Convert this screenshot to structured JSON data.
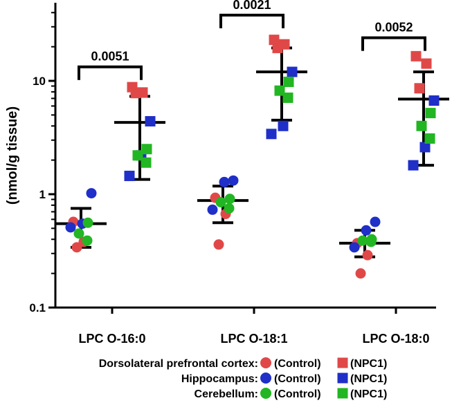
{
  "chart_data": {
    "type": "scatter",
    "title": "",
    "xlabel": "",
    "ylabel": "(nmol/g tissue)",
    "yscale": "log",
    "ylim": [
      0.1,
      60
    ],
    "y_ticks": [
      {
        "value": 0.1,
        "label": "0.1"
      },
      {
        "value": 1,
        "label": "1"
      },
      {
        "value": 10,
        "label": "10"
      }
    ],
    "categories": [
      "LPC O-16:0",
      "LPC O-18:1",
      "LPC O-18:0"
    ],
    "groups": [
      {
        "key": "control",
        "label": "(Control)",
        "marker": "circle"
      },
      {
        "key": "npc1",
        "label": "(NPC1)",
        "marker": "square"
      }
    ],
    "regions": [
      {
        "key": "dlpfc",
        "label": "Dorsolateral prefrontal cortex:",
        "color": "#e04848"
      },
      {
        "key": "hippo",
        "label": "Hippocampus:",
        "color": "#1f2fc8"
      },
      {
        "key": "cereb",
        "label": "Cerebellum:",
        "color": "#22b622"
      }
    ],
    "series": [
      {
        "category": "LPC O-16:0",
        "group": "control",
        "summary": {
          "mean": 0.55,
          "upper": 0.75,
          "lower": 0.34
        },
        "points": [
          {
            "region": "dlpfc",
            "y": 0.57
          },
          {
            "region": "dlpfc",
            "y": 0.38
          },
          {
            "region": "dlpfc",
            "y": 0.34
          },
          {
            "region": "hippo",
            "y": 1.02
          },
          {
            "region": "hippo",
            "y": 0.55
          },
          {
            "region": "hippo",
            "y": 0.51
          },
          {
            "region": "cereb",
            "y": 0.56
          },
          {
            "region": "cereb",
            "y": 0.45
          },
          {
            "region": "cereb",
            "y": 0.39
          }
        ]
      },
      {
        "category": "LPC O-16:0",
        "group": "npc1",
        "summary": {
          "mean": 4.3,
          "upper": 7.3,
          "lower": 1.35
        },
        "points": [
          {
            "region": "dlpfc",
            "y": 8.8
          },
          {
            "region": "dlpfc",
            "y": 7.9
          },
          {
            "region": "dlpfc",
            "y": 7.8
          },
          {
            "region": "hippo",
            "y": 4.4
          },
          {
            "region": "hippo",
            "y": 2.2
          },
          {
            "region": "hippo",
            "y": 1.45
          },
          {
            "region": "cereb",
            "y": 2.5
          },
          {
            "region": "cereb",
            "y": 2.2
          },
          {
            "region": "cereb",
            "y": 1.9
          }
        ]
      },
      {
        "category": "LPC O-18:1",
        "group": "control",
        "summary": {
          "mean": 0.88,
          "upper": 1.18,
          "lower": 0.56
        },
        "points": [
          {
            "region": "dlpfc",
            "y": 0.93
          },
          {
            "region": "dlpfc",
            "y": 0.67
          },
          {
            "region": "dlpfc",
            "y": 0.36
          },
          {
            "region": "hippo",
            "y": 1.32
          },
          {
            "region": "hippo",
            "y": 1.28
          },
          {
            "region": "hippo",
            "y": 0.73
          },
          {
            "region": "cereb",
            "y": 0.91
          },
          {
            "region": "cereb",
            "y": 0.85
          },
          {
            "region": "cereb",
            "y": 0.75
          }
        ]
      },
      {
        "category": "LPC O-18:1",
        "group": "npc1",
        "summary": {
          "mean": 12.0,
          "upper": 19.5,
          "lower": 4.5
        },
        "points": [
          {
            "region": "dlpfc",
            "y": 23.0
          },
          {
            "region": "dlpfc",
            "y": 21.0
          },
          {
            "region": "dlpfc",
            "y": 19.5
          },
          {
            "region": "hippo",
            "y": 12.0
          },
          {
            "region": "hippo",
            "y": 4.0
          },
          {
            "region": "hippo",
            "y": 3.4
          },
          {
            "region": "cereb",
            "y": 9.8
          },
          {
            "region": "cereb",
            "y": 8.2
          },
          {
            "region": "cereb",
            "y": 7.1
          }
        ]
      },
      {
        "category": "LPC O-18:0",
        "group": "control",
        "summary": {
          "mean": 0.37,
          "upper": 0.48,
          "lower": 0.28
        },
        "points": [
          {
            "region": "dlpfc",
            "y": 0.37
          },
          {
            "region": "dlpfc",
            "y": 0.29
          },
          {
            "region": "dlpfc",
            "y": 0.2
          },
          {
            "region": "hippo",
            "y": 0.57
          },
          {
            "region": "hippo",
            "y": 0.48
          },
          {
            "region": "hippo",
            "y": 0.34
          },
          {
            "region": "cereb",
            "y": 0.4
          },
          {
            "region": "cereb",
            "y": 0.39
          },
          {
            "region": "cereb",
            "y": 0.38
          }
        ]
      },
      {
        "category": "LPC O-18:0",
        "group": "npc1",
        "summary": {
          "mean": 6.9,
          "upper": 12.0,
          "lower": 1.8
        },
        "points": [
          {
            "region": "dlpfc",
            "y": 16.5
          },
          {
            "region": "dlpfc",
            "y": 14.2
          },
          {
            "region": "dlpfc",
            "y": 8.6
          },
          {
            "region": "hippo",
            "y": 6.7
          },
          {
            "region": "hippo",
            "y": 2.6
          },
          {
            "region": "hippo",
            "y": 1.8
          },
          {
            "region": "cereb",
            "y": 5.2
          },
          {
            "region": "cereb",
            "y": 4.0
          },
          {
            "region": "cereb",
            "y": 3.1
          }
        ]
      }
    ],
    "annotations": [
      {
        "category": "LPC O-16:0",
        "text": "0.0051",
        "bracket_y": 13.3
      },
      {
        "category": "LPC O-18:1",
        "text": "0.0021",
        "bracket_y": 38.0
      },
      {
        "category": "LPC O-18:0",
        "text": "0.0052",
        "bracket_y": 24.0
      }
    ],
    "grid": false,
    "legend_position": "bottom"
  }
}
